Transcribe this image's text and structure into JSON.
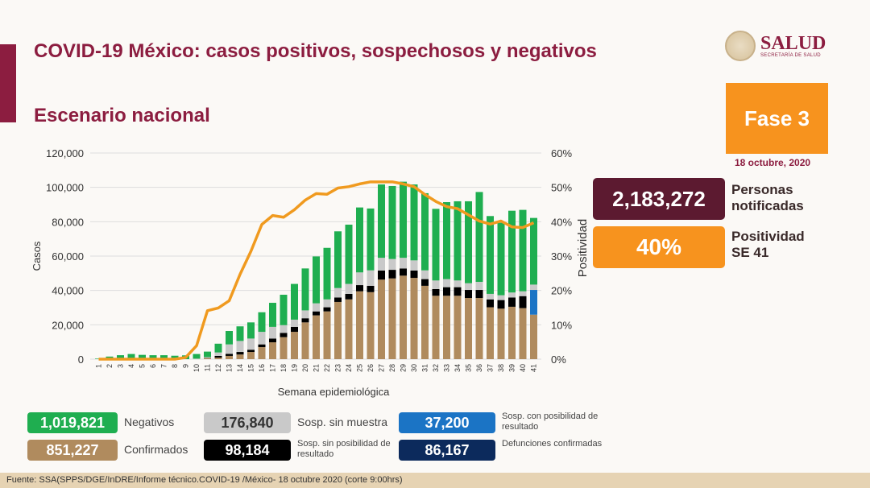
{
  "header": {
    "title": "COVID-19 México: casos positivos, sospechosos y negativos",
    "subtitle": "Escenario nacional"
  },
  "logo": {
    "name": "SALUD",
    "sub": "SECRETARÍA DE SALUD"
  },
  "phase": {
    "label": "Fase 3",
    "date": "18 octubre, 2020"
  },
  "kpis": {
    "personas_value": "2,183,272",
    "personas_label_1": "Personas",
    "personas_label_2": "notificadas",
    "positividad_value": "40%",
    "positividad_label_1": "Positividad",
    "positividad_label_2": "SE 41"
  },
  "legend": [
    {
      "value": "1,019,821",
      "label": "Negativos",
      "color": "#1fae50"
    },
    {
      "value": "851,227",
      "label": "Confirmados",
      "color": "#b08b5e"
    },
    {
      "value": "176,840",
      "label": "Sosp. sin muestra",
      "color": "#c9c9c9"
    },
    {
      "value": "98,184",
      "label": "Sosp. sin posibilidad de resultado",
      "color": "#000000"
    },
    {
      "value": "37,200",
      "label": "Sosp. con posibilidad de resultado",
      "color": "#1b74c5"
    },
    {
      "value": "86,167",
      "label": "Defunciones confirmadas",
      "color": "#0c2a5c"
    }
  ],
  "footer": "Fuente: SSA(SPPS/DGE/InDRE/Informe técnico.COVID-19 /México- 18 octubre 2020 (corte 9:00hrs)",
  "chart_data": {
    "type": "bar",
    "stacked": true,
    "xlabel": "Semana epidemiológica",
    "ylabel": "Casos",
    "y2label": "Positividad",
    "ylim": [
      0,
      120000
    ],
    "y2lim": [
      0,
      60
    ],
    "yticks": [
      "0",
      "20,000",
      "40,000",
      "60,000",
      "80,000",
      "100,000",
      "120,000"
    ],
    "y2ticks": [
      "0%",
      "10%",
      "20%",
      "30%",
      "40%",
      "50%",
      "60%"
    ],
    "categories": [
      "1",
      "2",
      "3",
      "4",
      "5",
      "6",
      "7",
      "8",
      "9",
      "10",
      "11",
      "12",
      "13",
      "14",
      "15",
      "16",
      "17",
      "18",
      "19",
      "20",
      "21",
      "22",
      "23",
      "24",
      "25",
      "26",
      "27",
      "28",
      "29",
      "30",
      "31",
      "32",
      "33",
      "34",
      "35",
      "36",
      "37",
      "38",
      "39",
      "40",
      "41"
    ],
    "series": [
      {
        "name": "Confirmados",
        "color": "#b08b5e",
        "values": [
          0,
          0,
          0,
          0,
          0,
          0,
          0,
          0,
          0,
          100,
          600,
          900,
          1900,
          2700,
          4200,
          7000,
          9800,
          12800,
          15900,
          21400,
          25500,
          27800,
          33300,
          34800,
          39500,
          39000,
          46300,
          47000,
          48600,
          47300,
          42700,
          36900,
          36900,
          36900,
          35600,
          35600,
          30200,
          29400,
          30500,
          29700,
          25900
        ]
      },
      {
        "name": "Sosp. sin posibilidad de resultado",
        "color": "#000000",
        "values": [
          0,
          0,
          0,
          0,
          0,
          0,
          0,
          0,
          0,
          0,
          100,
          1000,
          1200,
          1500,
          1300,
          1600,
          2200,
          2500,
          2900,
          2400,
          2300,
          2400,
          2600,
          3200,
          3600,
          3700,
          5300,
          5000,
          4200,
          4300,
          3900,
          3900,
          5000,
          5000,
          4700,
          4700,
          4600,
          5000,
          5400,
          7000,
          0
        ]
      },
      {
        "name": "Sosp. con posibilidad de resultado",
        "color": "#1b74c5",
        "values": [
          0,
          0,
          0,
          0,
          0,
          0,
          0,
          0,
          0,
          0,
          0,
          0,
          0,
          0,
          0,
          0,
          0,
          0,
          0,
          0,
          0,
          0,
          0,
          0,
          0,
          0,
          0,
          0,
          0,
          0,
          0,
          0,
          0,
          0,
          0,
          0,
          0,
          0,
          0,
          0,
          14400
        ]
      },
      {
        "name": "Sosp. sin muestra",
        "color": "#c9c9c9",
        "values": [
          0,
          0,
          0,
          0,
          0,
          0,
          0,
          0,
          0,
          200,
          500,
          2000,
          5500,
          6400,
          6500,
          7300,
          6800,
          4500,
          4200,
          4600,
          4700,
          4600,
          5500,
          5800,
          7400,
          9000,
          7400,
          6300,
          6200,
          5900,
          5100,
          5000,
          4700,
          3900,
          3900,
          4700,
          3200,
          2800,
          2900,
          2800,
          3100
        ]
      },
      {
        "name": "Negativos",
        "color": "#1fae50",
        "values": [
          300,
          1500,
          2300,
          3000,
          2500,
          2300,
          2300,
          2000,
          2200,
          2700,
          3200,
          5100,
          7800,
          8500,
          9400,
          11400,
          14000,
          17700,
          20800,
          24400,
          27300,
          30000,
          33000,
          34500,
          37800,
          36000,
          42700,
          42500,
          44300,
          44200,
          44900,
          41700,
          44800,
          46100,
          47700,
          52300,
          45300,
          42200,
          47600,
          47400,
          38800
        ]
      }
    ],
    "line": {
      "name": "Positividad",
      "color": "#f09a1f",
      "values": [
        0,
        0,
        0,
        0,
        0,
        0,
        0,
        0,
        0.5,
        3.9,
        14.1,
        14.9,
        17,
        24.7,
        31.4,
        39.2,
        41.8,
        41.3,
        43.5,
        46.3,
        48.2,
        48,
        49.8,
        50.2,
        51,
        51.6,
        51.6,
        51.6,
        51,
        50.2,
        47.9,
        45.9,
        44.4,
        43.8,
        42,
        40.2,
        39.3,
        40.2,
        38.5,
        38.3,
        39.7
      ]
    },
    "grid": true,
    "legend": "bottom"
  }
}
